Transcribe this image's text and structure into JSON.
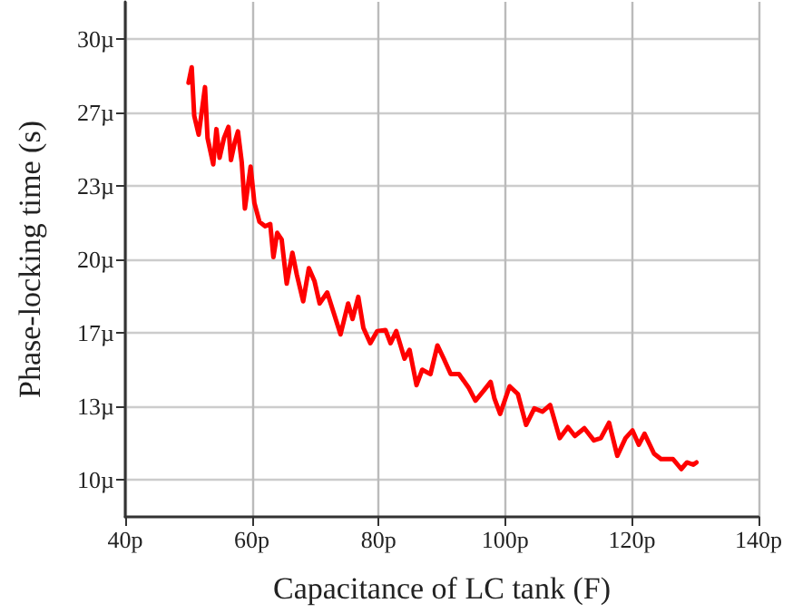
{
  "chart_data": {
    "type": "line",
    "xlabel": "Capacitance of LC tank (F)",
    "ylabel": "Phase-locking time (s)",
    "xlim": [
      40,
      140
    ],
    "xticks": [
      {
        "value": 40,
        "label": "40p"
      },
      {
        "value": 60,
        "label": "60p"
      },
      {
        "value": 80,
        "label": "80p"
      },
      {
        "value": 100,
        "label": "100p"
      },
      {
        "value": 120,
        "label": "120p"
      },
      {
        "value": 140,
        "label": "140p"
      }
    ],
    "ylim": [
      8.333,
      31.667
    ],
    "yticks": [
      {
        "value": 10,
        "label": "10µ"
      },
      {
        "value": 13.333,
        "label": "13µ"
      },
      {
        "value": 16.667,
        "label": "17µ"
      },
      {
        "value": 20,
        "label": "20µ"
      },
      {
        "value": 23.333,
        "label": "23µ"
      },
      {
        "value": 26.667,
        "label": "27µ"
      },
      {
        "value": 30,
        "label": "30µ"
      }
    ],
    "grid": true,
    "marker": "none",
    "line_style": "solid",
    "series": [
      {
        "color": "#ff0000",
        "x": [
          50.0,
          50.5,
          50.9,
          51.6,
          52.0,
          52.6,
          53.0,
          53.9,
          54.4,
          54.9,
          55.6,
          56.3,
          56.7,
          57.3,
          57.8,
          58.4,
          58.9,
          59.8,
          60.4,
          61.2,
          62.1,
          62.9,
          63.4,
          64.0,
          64.7,
          65.5,
          66.4,
          67.1,
          68.1,
          69.0,
          69.9,
          70.7,
          71.9,
          72.9,
          74.0,
          75.2,
          75.9,
          76.8,
          77.6,
          78.7,
          79.8,
          81.1,
          81.9,
          82.8,
          84.1,
          84.9,
          86.0,
          86.9,
          88.2,
          89.3,
          90.3,
          91.4,
          92.7,
          94.2,
          95.3,
          96.6,
          97.7,
          98.3,
          99.2,
          100.7,
          102.0,
          103.3,
          104.6,
          105.9,
          107.1,
          108.6,
          109.9,
          111.0,
          112.5,
          114.0,
          115.1,
          116.4,
          117.7,
          119.0,
          120.1,
          121.1,
          122.0,
          123.5,
          124.6,
          126.5,
          127.8,
          128.7,
          129.7,
          130.2
        ],
        "values": [
          28.0,
          28.7,
          26.5,
          25.65,
          26.5,
          27.8,
          25.5,
          24.3,
          25.9,
          24.6,
          25.5,
          26.0,
          24.5,
          25.3,
          25.8,
          24.4,
          22.3,
          24.2,
          22.55,
          21.7,
          21.5,
          21.6,
          20.1,
          21.2,
          20.9,
          18.9,
          20.3,
          19.3,
          18.1,
          19.6,
          19.0,
          18.0,
          18.5,
          17.6,
          16.6,
          18.0,
          17.3,
          18.3,
          16.9,
          16.2,
          16.75,
          16.8,
          16.2,
          16.75,
          15.5,
          15.9,
          14.3,
          15.0,
          14.8,
          16.1,
          15.5,
          14.8,
          14.8,
          14.2,
          13.6,
          14.05,
          14.45,
          13.7,
          13.0,
          14.25,
          13.9,
          12.5,
          13.25,
          13.1,
          13.4,
          11.9,
          12.4,
          12.0,
          12.35,
          11.8,
          11.9,
          12.6,
          11.1,
          11.9,
          12.25,
          11.6,
          12.1,
          11.2,
          10.95,
          10.95,
          10.5,
          10.8,
          10.7,
          10.8
        ]
      }
    ]
  }
}
